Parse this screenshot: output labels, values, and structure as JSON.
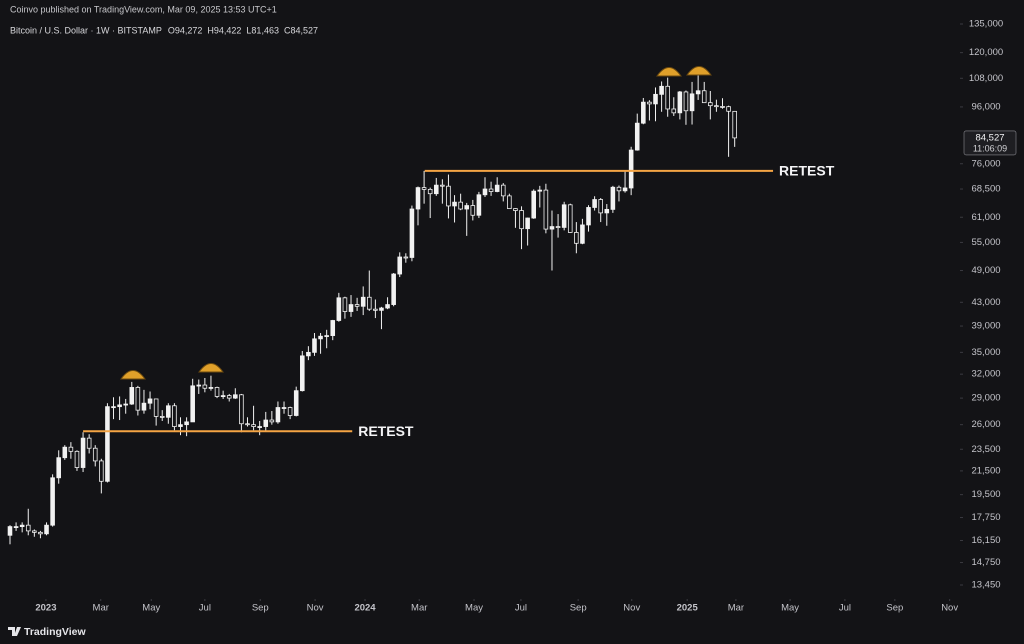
{
  "chart_data": {
    "type": "candlestick",
    "publisher": "Coinvo published on TradingView.com, Mar 09, 2025 13:53 UTC+1",
    "symbol": "Bitcoin / U.S. Dollar · 1W · BITSTAMP",
    "ohlc_labels": [
      "O94,272",
      "H94,422",
      "L81,463",
      "C84,527"
    ],
    "last_price_label": "84,527",
    "countdown": "11:06:09",
    "brand": "TradingView",
    "up_color": "#f2f2f2",
    "down_color": "#131316",
    "annotation_color": "#f4a444",
    "log_scale": true,
    "grid": false,
    "ylim": [
      13450,
      135000
    ],
    "yticks": [
      {
        "value": 135000,
        "label": "135,000"
      },
      {
        "value": 120000,
        "label": "120,000"
      },
      {
        "value": 108000,
        "label": "108,000"
      },
      {
        "value": 96000,
        "label": "96,000"
      },
      {
        "value": 76000,
        "label": "76,000"
      },
      {
        "value": 68500,
        "label": "68,500"
      },
      {
        "value": 61000,
        "label": "61,000"
      },
      {
        "value": 55000,
        "label": "55,000"
      },
      {
        "value": 49000,
        "label": "49,000"
      },
      {
        "value": 43000,
        "label": "43,000"
      },
      {
        "value": 39000,
        "label": "39,000"
      },
      {
        "value": 35000,
        "label": "35,000"
      },
      {
        "value": 32000,
        "label": "32,000"
      },
      {
        "value": 29000,
        "label": "29,000"
      },
      {
        "value": 26000,
        "label": "26,000"
      },
      {
        "value": 23500,
        "label": "23,500"
      },
      {
        "value": 21500,
        "label": "21,500"
      },
      {
        "value": 19500,
        "label": "19,500"
      },
      {
        "value": 17750,
        "label": "17,750"
      },
      {
        "value": 16150,
        "label": "16,150"
      },
      {
        "value": 14750,
        "label": "14,750"
      },
      {
        "value": 13450,
        "label": "13,450"
      }
    ],
    "xlim": [
      -1.64,
      156.0
    ],
    "xticks": [
      {
        "value": 5.9,
        "label": "2023"
      },
      {
        "value": 14.9,
        "label": "Mar"
      },
      {
        "value": 23.2,
        "label": "May"
      },
      {
        "value": 32.0,
        "label": "Jul"
      },
      {
        "value": 41.1,
        "label": "Sep"
      },
      {
        "value": 50.1,
        "label": "Nov"
      },
      {
        "value": 58.3,
        "label": "2024"
      },
      {
        "value": 67.2,
        "label": "Mar"
      },
      {
        "value": 76.2,
        "label": "May"
      },
      {
        "value": 83.9,
        "label": "Jul"
      },
      {
        "value": 93.3,
        "label": "Sep"
      },
      {
        "value": 102.1,
        "label": "Nov"
      },
      {
        "value": 111.2,
        "label": "2025"
      },
      {
        "value": 119.2,
        "label": "Mar"
      },
      {
        "value": 128.1,
        "label": "May"
      },
      {
        "value": 137.1,
        "label": "Jul"
      },
      {
        "value": 145.3,
        "label": "Sep"
      },
      {
        "value": 154.3,
        "label": "Nov"
      }
    ],
    "annotations": [
      {
        "text": "RETEST",
        "level": 25300,
        "x": [
          12,
          56.2
        ]
      },
      {
        "text": "RETEST",
        "level": 73800,
        "x": [
          68.1,
          125.3
        ]
      }
    ],
    "open": [
      16500,
      17100,
      17100,
      17200,
      16800,
      16700,
      16600,
      17200,
      20900,
      22700,
      23700,
      23300,
      21800,
      24600,
      23600,
      22400,
      20600,
      28000,
      28000,
      28200,
      28300,
      30300,
      27600,
      28400,
      28900,
      26900,
      26800,
      28100,
      25800,
      26000,
      26300,
      30500,
      30600,
      30200,
      30300,
      29200,
      29300,
      29000,
      29400,
      26100,
      26000,
      25800,
      25800,
      26500,
      26300,
      27900,
      27900,
      27000,
      29900,
      34500,
      35000,
      37000,
      37400,
      37500,
      39900,
      43800,
      41400,
      42600,
      42300,
      43900,
      41800,
      41600,
      42000,
      42600,
      48300,
      51800,
      51700,
      63100,
      68900,
      68400,
      67200,
      69600,
      69300,
      63900,
      64900,
      63100,
      64000,
      61500,
      66900,
      68500,
      67800,
      69600,
      66600,
      63200,
      62700,
      58200,
      60800,
      67900,
      68200,
      58100,
      58700,
      58500,
      64200,
      57300,
      54800,
      59100,
      63500,
      65600,
      62100,
      63000,
      69000,
      68000,
      68800,
      80400,
      89800,
      97900,
      97200,
      101100,
      104500,
      95200,
      93700,
      102100,
      94500,
      101300,
      102600,
      97700,
      96500,
      96200,
      96100,
      94272
    ],
    "high": [
      17200,
      17400,
      17400,
      18400,
      16900,
      16800,
      17400,
      21200,
      23400,
      23900,
      24200,
      23400,
      25200,
      25000,
      23900,
      22600,
      28400,
      29100,
      29200,
      28900,
      31000,
      30500,
      30000,
      29800,
      28900,
      27600,
      28400,
      28400,
      26800,
      26800,
      31400,
      31300,
      31500,
      31800,
      30400,
      29900,
      29500,
      30200,
      29500,
      26800,
      28100,
      26400,
      27400,
      27500,
      28600,
      28600,
      28000,
      30400,
      35200,
      35900,
      37900,
      37900,
      38400,
      40000,
      44700,
      44000,
      44300,
      43800,
      45900,
      49000,
      43500,
      42200,
      43900,
      48500,
      52800,
      52600,
      64000,
      69200,
      73800,
      68900,
      71700,
      71300,
      72700,
      66800,
      67200,
      64700,
      65500,
      67700,
      71900,
      70600,
      71900,
      70200,
      67200,
      63300,
      63800,
      60900,
      68400,
      69400,
      70000,
      62700,
      61800,
      65000,
      64500,
      59800,
      60600,
      64100,
      66500,
      66000,
      64400,
      69400,
      69500,
      73600,
      81500,
      93400,
      99600,
      98700,
      104000,
      106600,
      108300,
      99900,
      102500,
      102700,
      106400,
      109600,
      106400,
      102500,
      98900,
      99500,
      96500,
      94422
    ],
    "low": [
      15900,
      16800,
      16700,
      16500,
      16400,
      16300,
      16500,
      17100,
      20400,
      22500,
      22600,
      21500,
      21400,
      23100,
      21900,
      19600,
      20500,
      26600,
      26500,
      27200,
      28200,
      27000,
      27200,
      27700,
      25900,
      26400,
      26100,
      25400,
      24900,
      24800,
      26300,
      29500,
      29700,
      29900,
      29000,
      28900,
      28600,
      28900,
      25200,
      25800,
      25400,
      24900,
      25300,
      26000,
      26100,
      27200,
      26600,
      26900,
      29800,
      33900,
      34500,
      34800,
      35600,
      36800,
      39700,
      40200,
      40500,
      41500,
      40800,
      41500,
      40300,
      38500,
      41800,
      42300,
      47700,
      50600,
      50900,
      59000,
      64500,
      60800,
      66600,
      64500,
      60700,
      59700,
      62800,
      56500,
      60200,
      60800,
      66300,
      66600,
      67600,
      65100,
      63100,
      58400,
      53500,
      54300,
      60600,
      63500,
      57100,
      49000,
      56100,
      57800,
      57200,
      52600,
      54600,
      57500,
      62700,
      59800,
      58900,
      62100,
      65100,
      67500,
      66800,
      80200,
      89400,
      90800,
      90500,
      94100,
      92200,
      92500,
      91200,
      89200,
      89300,
      98800,
      97700,
      91200,
      94100,
      95300,
      78200,
      81463
    ],
    "close": [
      17100,
      17100,
      17200,
      16800,
      16700,
      16600,
      17200,
      20900,
      22700,
      23700,
      23300,
      21800,
      24600,
      23600,
      22400,
      20600,
      28000,
      28000,
      28200,
      28300,
      30300,
      27600,
      28400,
      28900,
      26900,
      26800,
      28100,
      25800,
      26000,
      26300,
      30500,
      30600,
      30200,
      30300,
      29200,
      29300,
      29000,
      29400,
      26100,
      26000,
      25800,
      25800,
      26500,
      26300,
      27900,
      27900,
      27000,
      29900,
      34500,
      35000,
      37000,
      37400,
      37500,
      39900,
      43800,
      41400,
      42600,
      42300,
      43900,
      41800,
      41600,
      42000,
      42600,
      48300,
      51800,
      51700,
      63100,
      68900,
      68400,
      67200,
      69600,
      69300,
      63900,
      64900,
      63100,
      64000,
      61500,
      66900,
      68500,
      67800,
      69600,
      66600,
      63200,
      62700,
      58200,
      60800,
      67900,
      68200,
      58100,
      58700,
      58500,
      64200,
      57300,
      54800,
      59100,
      63500,
      65600,
      62100,
      63000,
      69000,
      68000,
      68800,
      80400,
      89800,
      97900,
      97200,
      101100,
      104500,
      95200,
      93700,
      102100,
      94500,
      101300,
      102600,
      97700,
      96500,
      96200,
      96100,
      94300,
      84527
    ]
  }
}
